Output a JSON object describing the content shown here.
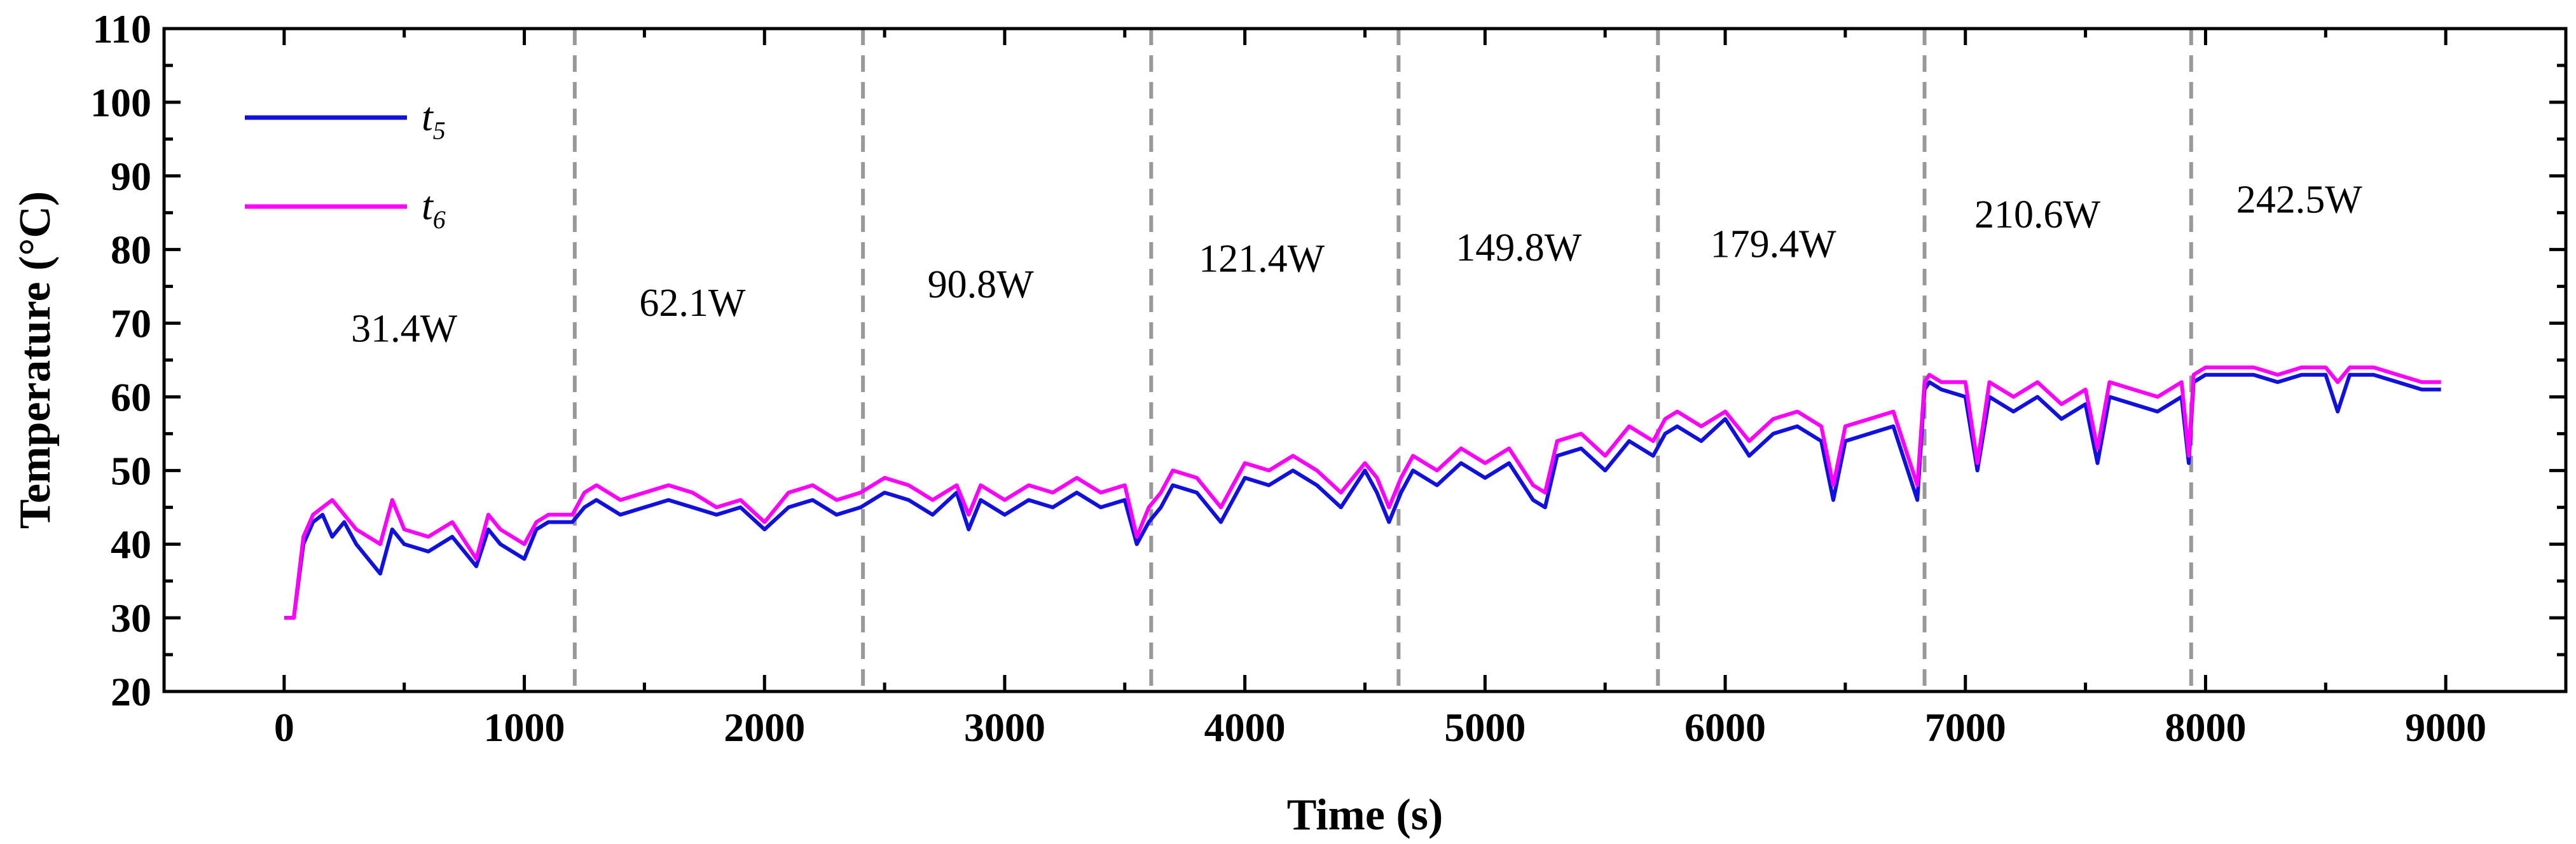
{
  "chart_data": {
    "type": "line",
    "title": "",
    "xlabel": "Time (s)",
    "ylabel": "Temperature (°C)",
    "xlim": [
      -500,
      9500
    ],
    "ylim": [
      20,
      110
    ],
    "x_ticks": [
      0,
      1000,
      2000,
      3000,
      4000,
      5000,
      6000,
      7000,
      8000,
      9000
    ],
    "y_ticks": [
      20,
      30,
      40,
      50,
      60,
      70,
      80,
      90,
      100,
      110
    ],
    "grid": false,
    "legend": {
      "placement": "top-left",
      "entries": [
        {
          "name": "t",
          "sub": "5",
          "color": "#1010e0"
        },
        {
          "name": "t",
          "sub": "6",
          "color": "#ff00ff"
        }
      ]
    },
    "phase_boundaries": [
      1210,
      2410,
      3610,
      4640,
      5720,
      6830,
      7940
    ],
    "annotations": [
      {
        "text": "31.4W",
        "x": 500,
        "y": 67.5
      },
      {
        "text": "62.1W",
        "x": 1700,
        "y": 71.0
      },
      {
        "text": "90.8W",
        "x": 2900,
        "y": 73.5
      },
      {
        "text": "121.4W",
        "x": 4070,
        "y": 77.0
      },
      {
        "text": "149.8W",
        "x": 5140,
        "y": 78.5
      },
      {
        "text": "179.4W",
        "x": 6200,
        "y": 79.0
      },
      {
        "text": "210.6W",
        "x": 7300,
        "y": 83.0
      },
      {
        "text": "242.5W",
        "x": 8390,
        "y": 85.0
      }
    ],
    "series": [
      {
        "name": "t5",
        "color": "#1010e0",
        "x": [
          0,
          40,
          80,
          120,
          160,
          200,
          250,
          300,
          350,
          400,
          450,
          500,
          600,
          700,
          800,
          850,
          900,
          1000,
          1050,
          1100,
          1200,
          1250,
          1300,
          1400,
          1500,
          1600,
          1700,
          1800,
          1900,
          2000,
          2100,
          2200,
          2300,
          2400,
          2450,
          2500,
          2600,
          2700,
          2800,
          2850,
          2900,
          3000,
          3100,
          3200,
          3300,
          3400,
          3500,
          3550,
          3600,
          3650,
          3700,
          3800,
          3900,
          4000,
          4100,
          4200,
          4300,
          4400,
          4500,
          4550,
          4600,
          4650,
          4700,
          4800,
          4900,
          5000,
          5100,
          5200,
          5250,
          5300,
          5400,
          5500,
          5600,
          5700,
          5750,
          5800,
          5900,
          6000,
          6100,
          6200,
          6300,
          6400,
          6450,
          6500,
          6600,
          6700,
          6800,
          6830,
          6850,
          6900,
          7000,
          7050,
          7100,
          7200,
          7300,
          7400,
          7500,
          7550,
          7600,
          7700,
          7800,
          7900,
          7930,
          7950,
          8000,
          8100,
          8200,
          8300,
          8400,
          8500,
          8550,
          8600,
          8700,
          8800,
          8900,
          8980
        ],
        "y": [
          30,
          30,
          40,
          43,
          44,
          41,
          43,
          40,
          38,
          36,
          42,
          40,
          39,
          41,
          37,
          42,
          40,
          38,
          42,
          43,
          43,
          45,
          46,
          44,
          45,
          46,
          45,
          44,
          45,
          42,
          45,
          46,
          44,
          45,
          46,
          47,
          46,
          44,
          47,
          42,
          46,
          44,
          46,
          45,
          47,
          45,
          46,
          40,
          43,
          45,
          48,
          47,
          43,
          49,
          48,
          50,
          48,
          45,
          50,
          47,
          43,
          47,
          50,
          48,
          51,
          49,
          51,
          46,
          45,
          52,
          53,
          50,
          54,
          52,
          55,
          56,
          54,
          57,
          52,
          55,
          56,
          54,
          46,
          54,
          55,
          56,
          46,
          61,
          62,
          61,
          60,
          50,
          60,
          58,
          60,
          57,
          59,
          51,
          60,
          59,
          58,
          60,
          51,
          62,
          63,
          63,
          63,
          62,
          63,
          63,
          58,
          63,
          63,
          62,
          61,
          61
        ]
      },
      {
        "name": "t6",
        "color": "#ff00ff",
        "x": [
          0,
          40,
          80,
          120,
          160,
          200,
          250,
          300,
          350,
          400,
          450,
          500,
          600,
          700,
          800,
          850,
          900,
          1000,
          1050,
          1100,
          1200,
          1250,
          1300,
          1400,
          1500,
          1600,
          1700,
          1800,
          1900,
          2000,
          2100,
          2200,
          2300,
          2400,
          2450,
          2500,
          2600,
          2700,
          2800,
          2850,
          2900,
          3000,
          3100,
          3200,
          3300,
          3400,
          3500,
          3550,
          3600,
          3650,
          3700,
          3800,
          3900,
          4000,
          4100,
          4200,
          4300,
          4400,
          4500,
          4550,
          4600,
          4650,
          4700,
          4800,
          4900,
          5000,
          5100,
          5200,
          5250,
          5300,
          5400,
          5500,
          5600,
          5700,
          5750,
          5800,
          5900,
          6000,
          6100,
          6200,
          6300,
          6400,
          6450,
          6500,
          6600,
          6700,
          6800,
          6830,
          6850,
          6900,
          7000,
          7050,
          7100,
          7200,
          7300,
          7400,
          7500,
          7550,
          7600,
          7700,
          7800,
          7900,
          7930,
          7950,
          8000,
          8100,
          8200,
          8300,
          8400,
          8500,
          8550,
          8600,
          8700,
          8800,
          8900,
          8980
        ],
        "y": [
          30,
          30,
          41,
          44,
          45,
          46,
          44,
          42,
          41,
          40,
          46,
          42,
          41,
          43,
          38,
          44,
          42,
          40,
          43,
          44,
          44,
          47,
          48,
          46,
          47,
          48,
          47,
          45,
          46,
          43,
          47,
          48,
          46,
          47,
          48,
          49,
          48,
          46,
          48,
          44,
          48,
          46,
          48,
          47,
          49,
          47,
          48,
          41,
          45,
          47,
          50,
          49,
          45,
          51,
          50,
          52,
          50,
          47,
          51,
          49,
          45,
          49,
          52,
          50,
          53,
          51,
          53,
          48,
          47,
          54,
          55,
          52,
          56,
          54,
          57,
          58,
          56,
          58,
          54,
          57,
          58,
          56,
          48,
          56,
          57,
          58,
          48,
          62,
          63,
          62,
          62,
          51,
          62,
          60,
          62,
          59,
          61,
          53,
          62,
          61,
          60,
          62,
          52,
          63,
          64,
          64,
          64,
          63,
          64,
          64,
          62,
          64,
          64,
          63,
          62,
          62
        ]
      }
    ]
  }
}
